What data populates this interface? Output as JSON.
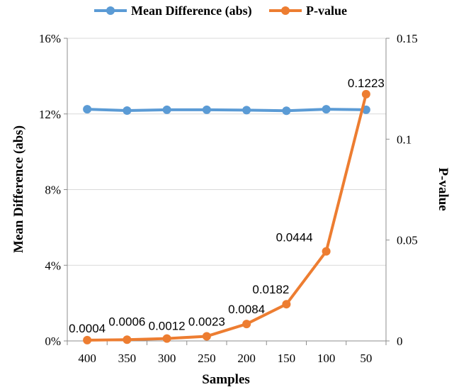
{
  "chart_data": {
    "type": "line",
    "categories": [
      "400",
      "350",
      "300",
      "250",
      "200",
      "150",
      "100",
      "50"
    ],
    "xlabel": "Samples",
    "y_left": {
      "label": "Mean Difference (abs)",
      "ylim": [
        0,
        16
      ],
      "ticks": [
        "0%",
        "4%",
        "8%",
        "12%",
        "16%"
      ],
      "tick_values": [
        0,
        4,
        8,
        12,
        16
      ]
    },
    "y_right": {
      "label": "P-value",
      "ylim": [
        0,
        0.15
      ],
      "ticks": [
        "0",
        "0.05",
        "0.1",
        "0.15"
      ],
      "tick_values": [
        0,
        0.05,
        0.1,
        0.15
      ]
    },
    "series": [
      {
        "name": "Mean Difference (abs)",
        "axis": "left",
        "color": "#5B9BD5",
        "values": [
          12.25,
          12.18,
          12.22,
          12.22,
          12.2,
          12.17,
          12.25,
          12.22
        ]
      },
      {
        "name": "P-value",
        "axis": "right",
        "color": "#ED7D31",
        "values": [
          0.0004,
          0.0006,
          0.0012,
          0.0023,
          0.0084,
          0.0182,
          0.0444,
          0.1223
        ],
        "labels": [
          "0.0004",
          "0.0006",
          "0.0012",
          "0.0023",
          "0.0084",
          "0.0182",
          "0.0444",
          "0.1223"
        ]
      }
    ],
    "grid": true,
    "legend": "top"
  }
}
